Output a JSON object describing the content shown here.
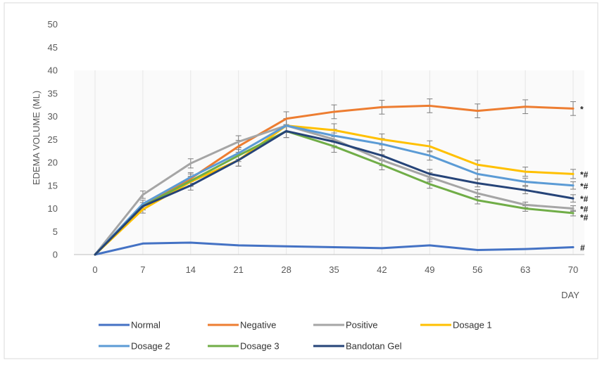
{
  "chart_data": {
    "type": "line",
    "title": "",
    "xlabel": "DAY",
    "ylabel": "EDEMA VOLUME (ML)",
    "x": [
      0,
      7,
      14,
      21,
      28,
      35,
      42,
      49,
      56,
      63,
      70
    ],
    "ylim": [
      0,
      50
    ],
    "yticks": [
      0,
      5,
      10,
      15,
      20,
      25,
      30,
      35,
      40,
      45,
      50
    ],
    "grid": true,
    "legend_position": "bottom",
    "series": [
      {
        "name": "Normal",
        "color": "#4472C4",
        "values": [
          0,
          2.4,
          2.6,
          2.0,
          1.8,
          1.6,
          1.4,
          2.0,
          1.0,
          1.2,
          1.6
        ],
        "error": [
          0,
          0,
          0,
          0,
          0,
          0,
          0,
          0,
          0,
          0,
          0
        ],
        "annotation": "#"
      },
      {
        "name": "Negative",
        "color": "#ED7D31",
        "values": [
          0,
          10.5,
          16.5,
          23.5,
          29.5,
          31.0,
          32.0,
          32.3,
          31.2,
          32.1,
          31.7
        ],
        "error": [
          0,
          0.8,
          1.0,
          1.3,
          1.5,
          1.5,
          1.5,
          1.5,
          1.5,
          1.5,
          1.5
        ],
        "annotation": "*"
      },
      {
        "name": "Positive",
        "color": "#A5A5A5",
        "values": [
          0,
          13.0,
          19.8,
          24.5,
          28.0,
          25.0,
          20.5,
          16.8,
          13.3,
          10.8,
          10.0
        ],
        "error": [
          0,
          0.8,
          1.0,
          1.3,
          1.5,
          1.4,
          1.2,
          1.0,
          0.8,
          0.6,
          0.6
        ],
        "annotation": "*#"
      },
      {
        "name": "Dosage 1",
        "color": "#FFC000",
        "values": [
          0,
          9.8,
          15.8,
          20.5,
          28.0,
          27.0,
          25.0,
          23.5,
          19.5,
          18.0,
          17.5
        ],
        "error": [
          0,
          0.8,
          1.0,
          1.3,
          1.5,
          1.4,
          1.2,
          1.2,
          1.0,
          1.0,
          1.0
        ],
        "annotation": "*#"
      },
      {
        "name": "Dosage 2",
        "color": "#5B9BD5",
        "values": [
          0,
          11.0,
          16.8,
          22.0,
          28.0,
          25.8,
          24.0,
          21.5,
          17.5,
          15.8,
          15.0
        ],
        "error": [
          0,
          0.8,
          1.0,
          1.3,
          1.5,
          1.4,
          1.2,
          1.0,
          1.0,
          0.8,
          0.8
        ],
        "annotation": "*#"
      },
      {
        "name": "Dosage 3",
        "color": "#70AD47",
        "values": [
          0,
          10.5,
          16.0,
          21.5,
          26.8,
          23.5,
          19.5,
          15.3,
          11.8,
          10.0,
          9.0
        ],
        "error": [
          0,
          0.8,
          1.0,
          1.3,
          1.4,
          1.3,
          1.1,
          0.9,
          0.8,
          0.6,
          0.6
        ],
        "annotation": "*#"
      },
      {
        "name": "Bandotan Gel",
        "color": "#264478",
        "values": [
          0,
          10.5,
          15.0,
          20.5,
          26.8,
          24.5,
          21.5,
          17.5,
          15.5,
          14.0,
          12.2
        ],
        "error": [
          0,
          0.8,
          1.0,
          1.3,
          1.4,
          1.3,
          1.1,
          1.0,
          0.8,
          0.8,
          0.8
        ],
        "annotation": "*#"
      }
    ]
  }
}
